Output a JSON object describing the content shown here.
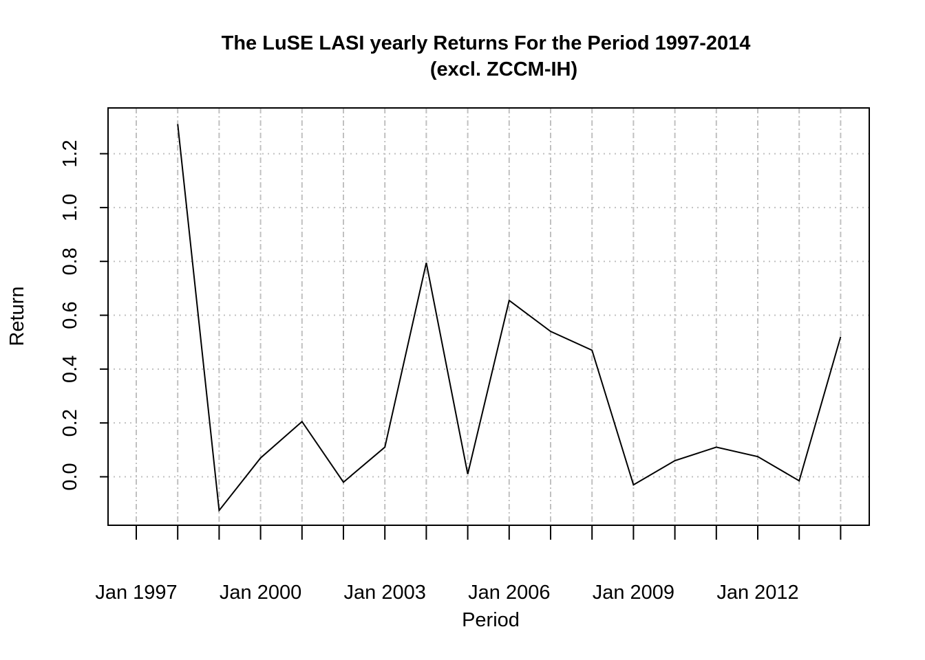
{
  "chart_data": {
    "type": "line",
    "title": "The LuSE LASI yearly Returns For the Period 1997-2014",
    "subtitle": "(excl. ZCCM-IH)",
    "xlabel": "Period",
    "ylabel": "Return",
    "x": [
      "1997",
      "1998",
      "1999",
      "2000",
      "2001",
      "2002",
      "2003",
      "2004",
      "2005",
      "2006",
      "2007",
      "2008",
      "2009",
      "2010",
      "2011",
      "2012",
      "2013",
      "2014"
    ],
    "x_tick_labels": [
      "Jan 1997",
      "Jan 2000",
      "Jan 2003",
      "Jan 2006",
      "Jan 2009",
      "Jan 2012"
    ],
    "x_tick_label_years": [
      "1997",
      "2000",
      "2003",
      "2006",
      "2009",
      "2012"
    ],
    "series": [
      {
        "values": [
          null,
          1.31,
          -0.125,
          0.07,
          0.205,
          -0.02,
          0.11,
          0.795,
          0.01,
          0.655,
          0.54,
          0.47,
          -0.03,
          0.06,
          0.11,
          0.075,
          -0.015,
          0.52
        ]
      }
    ],
    "y_ticks": [
      0.0,
      0.2,
      0.4,
      0.6,
      0.8,
      1.0,
      1.2
    ],
    "y_tick_labels": [
      "0.0",
      "0.2",
      "0.4",
      "0.6",
      "0.8",
      "1.0",
      "1.2"
    ],
    "ylim": [
      -0.18,
      1.37
    ],
    "xlim": [
      "1996",
      "2014"
    ],
    "grid": true,
    "colors": {
      "line": "#000000",
      "grid": "#c0c0c0"
    }
  }
}
